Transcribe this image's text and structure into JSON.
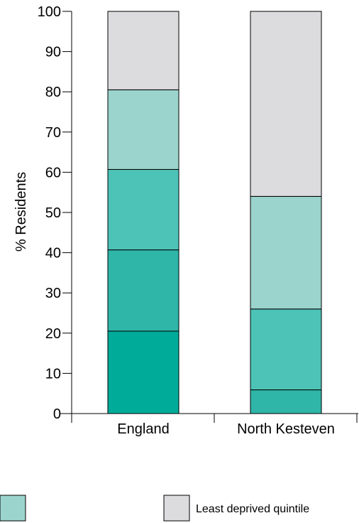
{
  "chart_data": {
    "type": "bar",
    "stacked": true,
    "categories": [
      "England",
      "North Kesteven"
    ],
    "ylabel": "% Residents",
    "ylim": [
      0,
      100
    ],
    "yticks": [
      0,
      10,
      20,
      30,
      40,
      50,
      60,
      70,
      80,
      90,
      100
    ],
    "grid": false,
    "series": [
      {
        "name": "",
        "color": "#00ab9a",
        "values": [
          20.5,
          0
        ]
      },
      {
        "name": "",
        "color": "#2fb6a8",
        "values": [
          20.2,
          5.9
        ]
      },
      {
        "name": "",
        "color": "#4dc3b7",
        "values": [
          20.0,
          20.1
        ]
      },
      {
        "name": "",
        "color": "#9bd4cd",
        "values": [
          19.8,
          28.0
        ]
      },
      {
        "name": "Least deprived quintile",
        "color": "#dcdcde",
        "values": [
          19.5,
          46.0
        ]
      }
    ],
    "legend": [
      {
        "label": "",
        "color": "#9bd4cd"
      },
      {
        "label": "Least deprived quintile",
        "color": "#dcdcde"
      }
    ]
  }
}
